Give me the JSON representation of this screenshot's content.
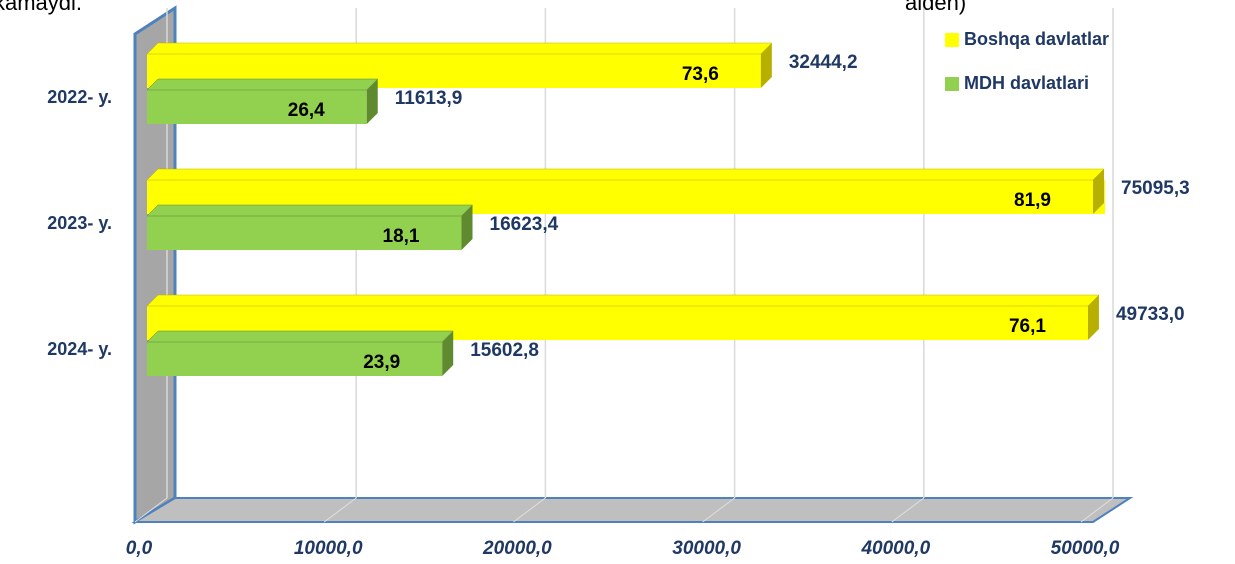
{
  "fragments": [
    "kamaydi.",
    "alden)"
  ],
  "chart_data": {
    "type": "bar3d_horizontal",
    "categories": [
      "2022- y.",
      "2023- y.",
      "2024- y."
    ],
    "series": [
      {
        "name": "Boshqa davlatlar",
        "color": "#ffff00",
        "side_color": "#b8b000",
        "values": [
          32444.2,
          75095.3,
          49733.0
        ],
        "value_labels": [
          "32444,2",
          "75095,3",
          "49733,0"
        ],
        "share_labels": [
          "73,6",
          "81,9",
          "76,1"
        ]
      },
      {
        "name": "MDH davlatlari",
        "color": "#92d050",
        "side_color": "#5f8a30",
        "values": [
          11613.9,
          16623.4,
          15602.8
        ],
        "value_labels": [
          "11613,9",
          "16623,4",
          "15602,8"
        ],
        "share_labels": [
          "26,4",
          "18,1",
          "23,9"
        ]
      }
    ],
    "xlim": [
      0,
      50000
    ],
    "xticks": [
      {
        "value": 0,
        "label": "0,0"
      },
      {
        "value": 10000,
        "label": "10000,0"
      },
      {
        "value": 20000,
        "label": "20000,0"
      },
      {
        "value": 30000,
        "label": "30000,0"
      },
      {
        "value": 40000,
        "label": "40000,0"
      },
      {
        "value": 50000,
        "label": "50000,0"
      }
    ],
    "grid": true,
    "legend": "top-right"
  }
}
